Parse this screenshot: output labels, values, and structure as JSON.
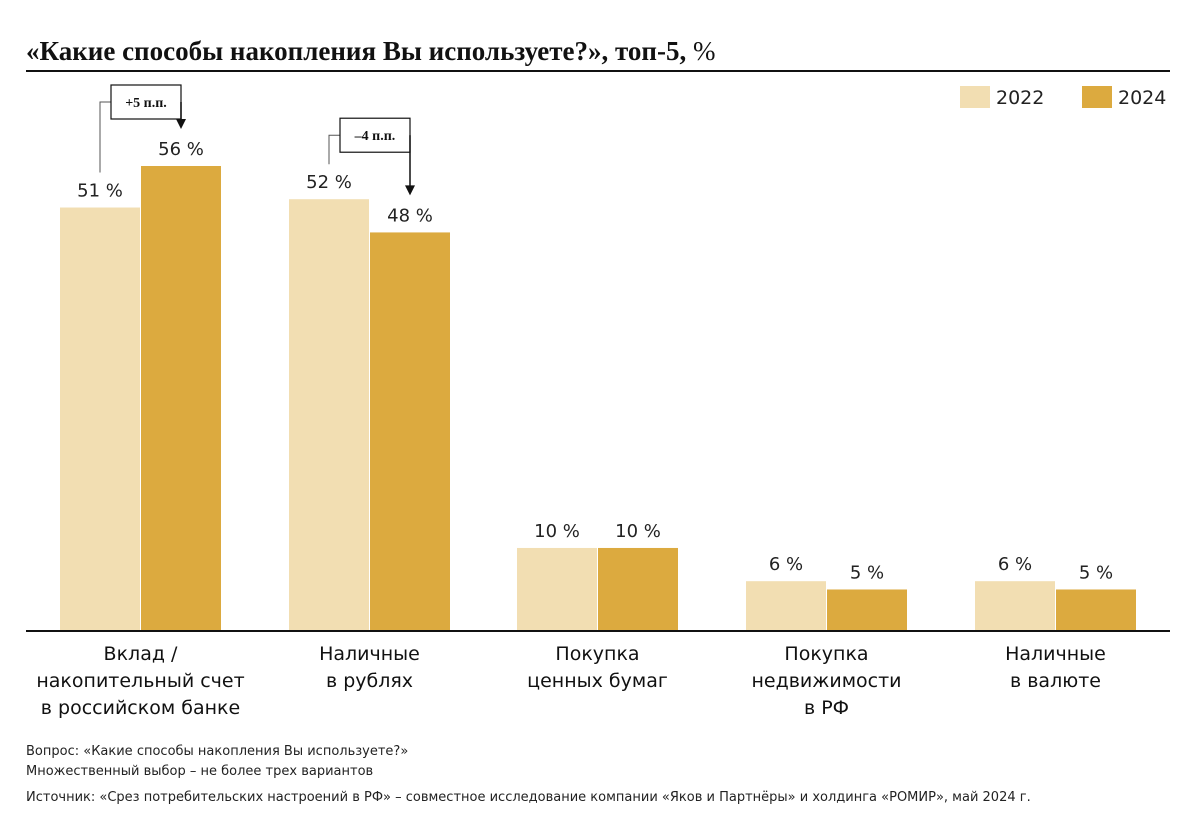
{
  "chart_data": {
    "type": "bar",
    "title": "«Какие способы накопления Вы используете?», топ-5,",
    "title_unit": "%",
    "unit_suffix": " %",
    "categories": [
      [
        "Вклад /",
        "накопительный счет",
        "в российском банке"
      ],
      [
        "Наличные",
        "в рублях"
      ],
      [
        "Покупка",
        "ценных бумаг"
      ],
      [
        "Покупка",
        "недвижимости",
        "в РФ"
      ],
      [
        "Наличные",
        "в валюте"
      ]
    ],
    "series": [
      {
        "name": "2022",
        "color": "#f2deb2",
        "values": [
          51,
          52,
          10,
          6,
          6
        ]
      },
      {
        "name": "2024",
        "color": "#dcaa3f",
        "values": [
          56,
          48,
          10,
          5,
          5
        ]
      }
    ],
    "ylim": [
      0,
      56
    ],
    "legend_position": "top-right",
    "xlabel": "",
    "ylabel": "",
    "annotations": [
      {
        "category_index": 0,
        "text": "+5 п.п."
      },
      {
        "category_index": 1,
        "text": "–4 п.п."
      }
    ]
  },
  "footnotes": {
    "question": "Вопрос: «Какие способы накопления Вы используете?»",
    "multiple_choice": "Множественный выбор – не более трех вариантов",
    "source": "Источник: «Срез потребительских настроений в РФ» – совместное исследование компании «Яков и Партнёры» и холдинга «РОМИР», май 2024 г."
  }
}
